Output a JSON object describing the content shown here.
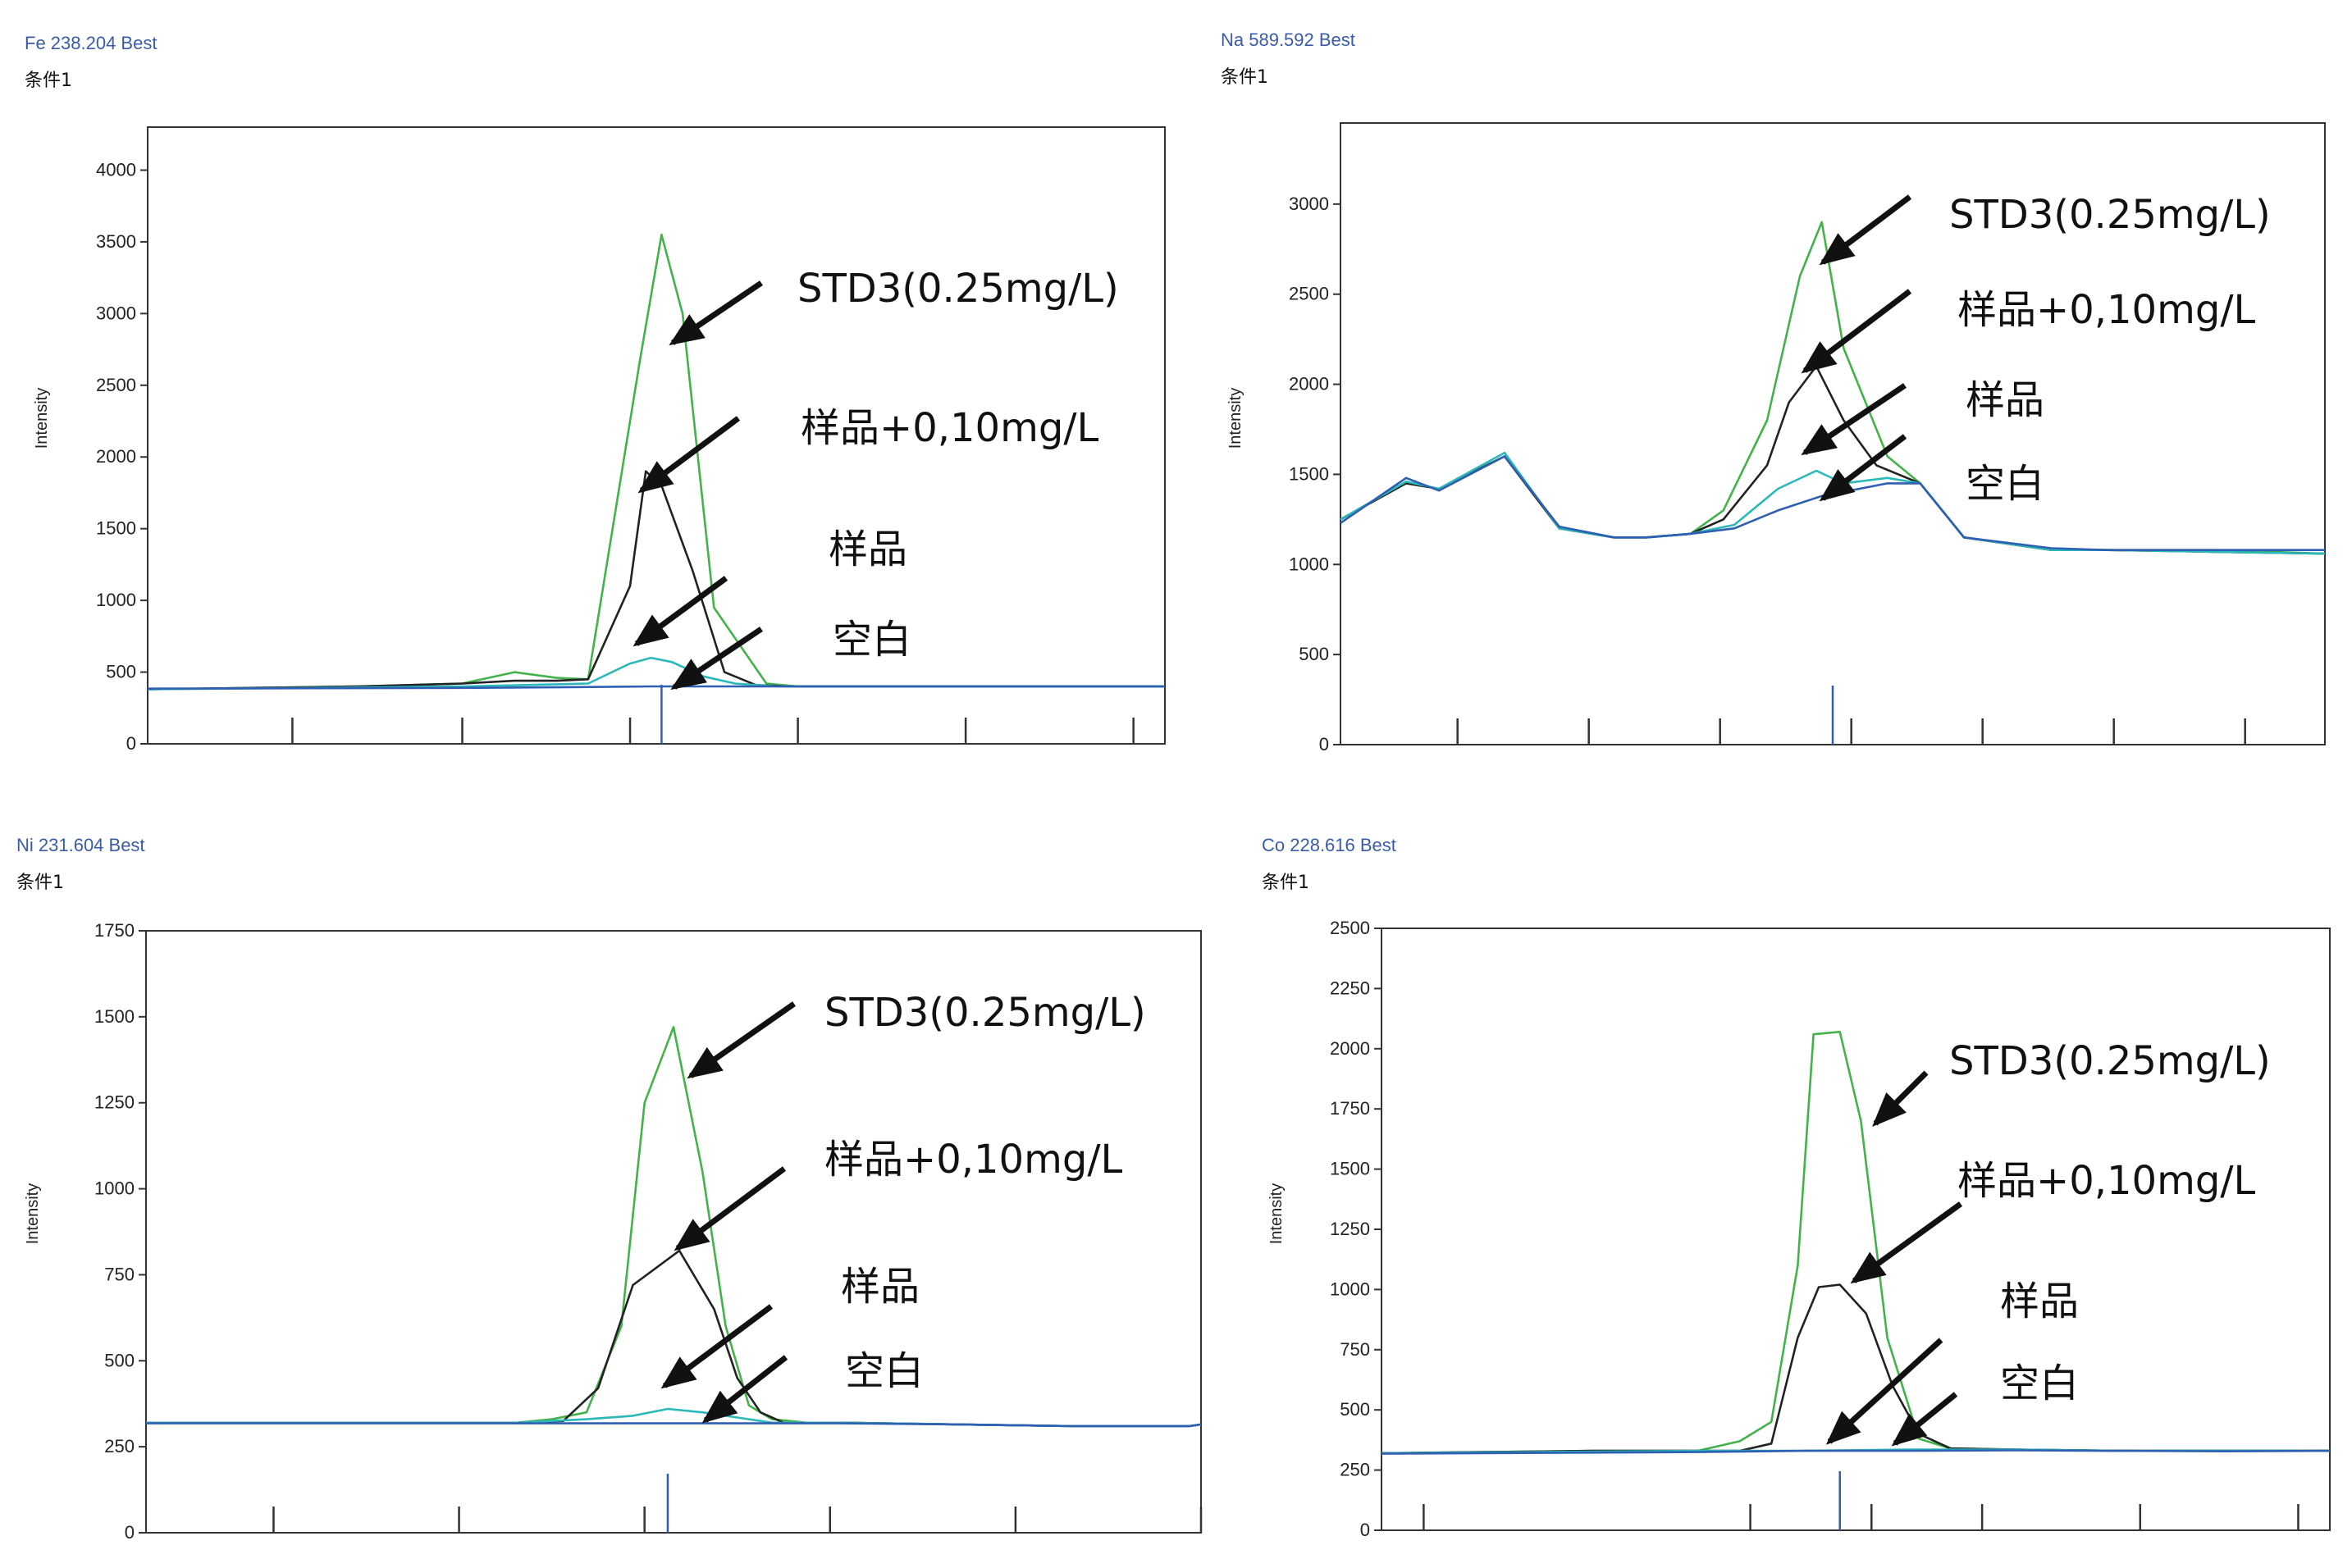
{
  "arrow_color": "#111111",
  "chart_data": [
    {
      "type": "line",
      "title": "Fe 238.204 Best",
      "subtitle": "条件1",
      "ylabel": "Intensity",
      "xlabel": "",
      "ylim": [
        0,
        4300
      ],
      "yticks": [
        0,
        500,
        1000,
        1500,
        2000,
        2500,
        3000,
        3500,
        4000
      ],
      "x_ticks": [
        1.38,
        3.0,
        4.6,
        6.2,
        7.8,
        9.4
      ],
      "peak_marker_x": 4.9,
      "grid": false,
      "series": [
        {
          "color": "#44b24a",
          "x": [
            0,
            1,
            2,
            3,
            3.5,
            3.9,
            4.2,
            4.7,
            4.9,
            5.1,
            5.4,
            5.9,
            6.2,
            7,
            8,
            9,
            9.7
          ],
          "y": [
            380,
            390,
            400,
            420,
            500,
            460,
            450,
            2700,
            3550,
            3000,
            950,
            420,
            400,
            400,
            400,
            400,
            400
          ]
        },
        {
          "color": "#222222",
          "x": [
            0,
            1,
            2,
            3,
            3.5,
            3.9,
            4.2,
            4.6,
            4.75,
            4.9,
            5.2,
            5.5,
            5.8,
            6.1,
            7,
            8,
            9,
            9.7
          ],
          "y": [
            380,
            390,
            400,
            420,
            440,
            440,
            450,
            1100,
            1900,
            1800,
            1200,
            500,
            410,
            400,
            400,
            400,
            400,
            400
          ]
        },
        {
          "color": "#2bb8b8",
          "x": [
            0,
            3,
            3.6,
            4.2,
            4.6,
            4.8,
            5.0,
            5.3,
            5.6,
            6.0,
            7,
            8,
            9,
            9.7
          ],
          "y": [
            380,
            400,
            410,
            420,
            560,
            600,
            570,
            470,
            420,
            400,
            400,
            400,
            400,
            400
          ]
        },
        {
          "color": "#2f5fb3",
          "x": [
            0,
            3,
            4,
            4.8,
            5.2,
            5.6,
            6.2,
            7,
            8,
            9,
            9.7
          ],
          "y": [
            385,
            390,
            395,
            400,
            400,
            400,
            400,
            400,
            400,
            400,
            400
          ]
        }
      ],
      "annotations": [
        "STD3(0.25mg/L)",
        "样品+0,10mg/L",
        "样品",
        "空白"
      ]
    },
    {
      "type": "line",
      "title": "Na 589.592 Best",
      "subtitle": "条件1",
      "ylabel": "Intensity",
      "xlabel": "",
      "ylim": [
        0,
        3450
      ],
      "yticks": [
        0,
        500,
        1000,
        1500,
        2000,
        2500,
        3000
      ],
      "x_ticks": [
        1.07,
        2.27,
        3.47,
        4.67,
        5.87,
        7.07,
        8.27
      ],
      "peak_marker_x": 4.5,
      "grid": false,
      "series": [
        {
          "color": "#44b24a",
          "x": [
            0,
            0.6,
            0.9,
            1.5,
            2.0,
            2.5,
            2.8,
            3.2,
            3.5,
            3.9,
            4.2,
            4.4,
            4.6,
            5.0,
            5.3,
            5.7,
            6.5,
            7,
            8,
            9
          ],
          "y": [
            1250,
            1450,
            1420,
            1600,
            1200,
            1150,
            1150,
            1170,
            1300,
            1800,
            2600,
            2900,
            2200,
            1600,
            1450,
            1150,
            1080,
            1080,
            1080,
            1060
          ]
        },
        {
          "color": "#222222",
          "x": [
            0,
            0.6,
            0.9,
            1.5,
            2.0,
            2.5,
            2.8,
            3.2,
            3.5,
            3.9,
            4.1,
            4.35,
            4.6,
            4.9,
            5.3,
            5.7,
            6.5,
            7,
            8,
            9
          ],
          "y": [
            1250,
            1450,
            1420,
            1600,
            1200,
            1150,
            1150,
            1170,
            1250,
            1550,
            1900,
            2100,
            1800,
            1550,
            1450,
            1150,
            1080,
            1080,
            1070,
            1060
          ]
        },
        {
          "color": "#2bb8b8",
          "x": [
            0,
            0.6,
            0.9,
            1.5,
            2.0,
            2.5,
            2.8,
            3.2,
            3.6,
            4.0,
            4.35,
            4.6,
            5.0,
            5.3,
            5.7,
            6.5,
            7,
            8,
            9
          ],
          "y": [
            1250,
            1460,
            1420,
            1620,
            1200,
            1150,
            1150,
            1170,
            1220,
            1420,
            1520,
            1450,
            1480,
            1450,
            1150,
            1080,
            1080,
            1070,
            1060
          ]
        },
        {
          "color": "#2f5fb3",
          "x": [
            0,
            0.6,
            0.9,
            1.5,
            2.0,
            2.5,
            2.8,
            3.2,
            3.6,
            4.0,
            4.4,
            5.0,
            5.3,
            5.7,
            6.5,
            7,
            8,
            9
          ],
          "y": [
            1230,
            1480,
            1410,
            1600,
            1210,
            1150,
            1150,
            1170,
            1200,
            1300,
            1380,
            1450,
            1450,
            1150,
            1090,
            1080,
            1080,
            1080
          ]
        }
      ],
      "annotations": [
        "STD3(0.25mg/L)",
        "样品+0,10mg/L",
        "样品",
        "空白"
      ]
    },
    {
      "type": "line",
      "title": "Ni 231.604 Best",
      "subtitle": "条件1",
      "ylabel": "Intensity",
      "xlabel": "",
      "ylim": [
        0,
        1750
      ],
      "yticks": [
        0,
        250,
        500,
        750,
        1000,
        1250,
        1500,
        1750
      ],
      "x_ticks": [
        1.1,
        2.7,
        4.3,
        5.9,
        7.5,
        9.1
      ],
      "peak_marker_x": 4.5,
      "grid": false,
      "series": [
        {
          "color": "#44b24a",
          "x": [
            0,
            2,
            3.2,
            3.5,
            3.8,
            4.1,
            4.3,
            4.55,
            4.8,
            5.0,
            5.2,
            5.4,
            5.7,
            6,
            7,
            8,
            9,
            9.1
          ],
          "y": [
            320,
            320,
            320,
            330,
            350,
            600,
            1250,
            1470,
            1050,
            600,
            370,
            330,
            320,
            320,
            315,
            310,
            310,
            315
          ]
        },
        {
          "color": "#222222",
          "x": [
            0,
            2,
            3.2,
            3.6,
            3.9,
            4.2,
            4.6,
            4.9,
            5.1,
            5.3,
            5.5,
            6,
            7,
            8,
            9,
            9.1
          ],
          "y": [
            320,
            320,
            320,
            325,
            420,
            720,
            820,
            650,
            450,
            350,
            320,
            320,
            315,
            310,
            310,
            315
          ]
        },
        {
          "color": "#2bb8b8",
          "x": [
            0,
            2,
            3.2,
            3.8,
            4.2,
            4.5,
            4.8,
            5.1,
            5.4,
            6,
            7,
            8,
            9,
            9.1
          ],
          "y": [
            320,
            320,
            320,
            330,
            340,
            360,
            350,
            335,
            320,
            320,
            315,
            310,
            310,
            315
          ]
        },
        {
          "color": "#2f5fb3",
          "x": [
            0,
            2,
            4,
            5,
            6,
            7,
            8,
            9,
            9.1
          ],
          "y": [
            318,
            318,
            318,
            318,
            318,
            315,
            310,
            310,
            315
          ]
        }
      ],
      "annotations": [
        "STD3(0.25mg/L)",
        "样品+0,10mg/L",
        "样品",
        "空白"
      ]
    },
    {
      "type": "line",
      "title": "Co 228.616 Best",
      "subtitle": "条件1",
      "ylabel": "Intensity",
      "xlabel": "",
      "ylim": [
        0,
        2500
      ],
      "yticks": [
        0,
        250,
        500,
        750,
        1000,
        1250,
        1500,
        1750,
        2000,
        2250,
        2500
      ],
      "x_ticks": [
        0.4,
        3.5,
        4.65,
        5.7,
        7.2,
        8.7
      ],
      "peak_marker_x": 4.35,
      "grid": false,
      "series": [
        {
          "color": "#44b24a",
          "x": [
            0,
            2,
            3,
            3.4,
            3.7,
            3.95,
            4.1,
            4.35,
            4.55,
            4.8,
            5.1,
            5.4,
            6,
            7,
            8,
            9
          ],
          "y": [
            320,
            330,
            330,
            370,
            450,
            1100,
            2060,
            2070,
            1700,
            800,
            380,
            340,
            335,
            330,
            330,
            330
          ]
        },
        {
          "color": "#222222",
          "x": [
            0,
            2,
            3,
            3.4,
            3.7,
            3.95,
            4.15,
            4.35,
            4.6,
            4.85,
            5.1,
            5.4,
            6,
            7,
            8,
            9
          ],
          "y": [
            320,
            330,
            330,
            330,
            360,
            800,
            1010,
            1020,
            900,
            600,
            400,
            340,
            335,
            330,
            330,
            330
          ]
        },
        {
          "color": "#2bb8b8",
          "x": [
            0,
            3,
            4,
            5,
            6,
            7,
            8,
            9
          ],
          "y": [
            320,
            330,
            330,
            335,
            335,
            330,
            330,
            330
          ]
        },
        {
          "color": "#2f5fb3",
          "x": [
            0,
            3,
            4,
            5,
            6,
            7,
            8,
            9
          ],
          "y": [
            318,
            325,
            330,
            330,
            332,
            330,
            328,
            330
          ]
        }
      ],
      "annotations": [
        "STD3(0.25mg/L)",
        "样品+0,10mg/L",
        "样品",
        "空白"
      ]
    }
  ]
}
